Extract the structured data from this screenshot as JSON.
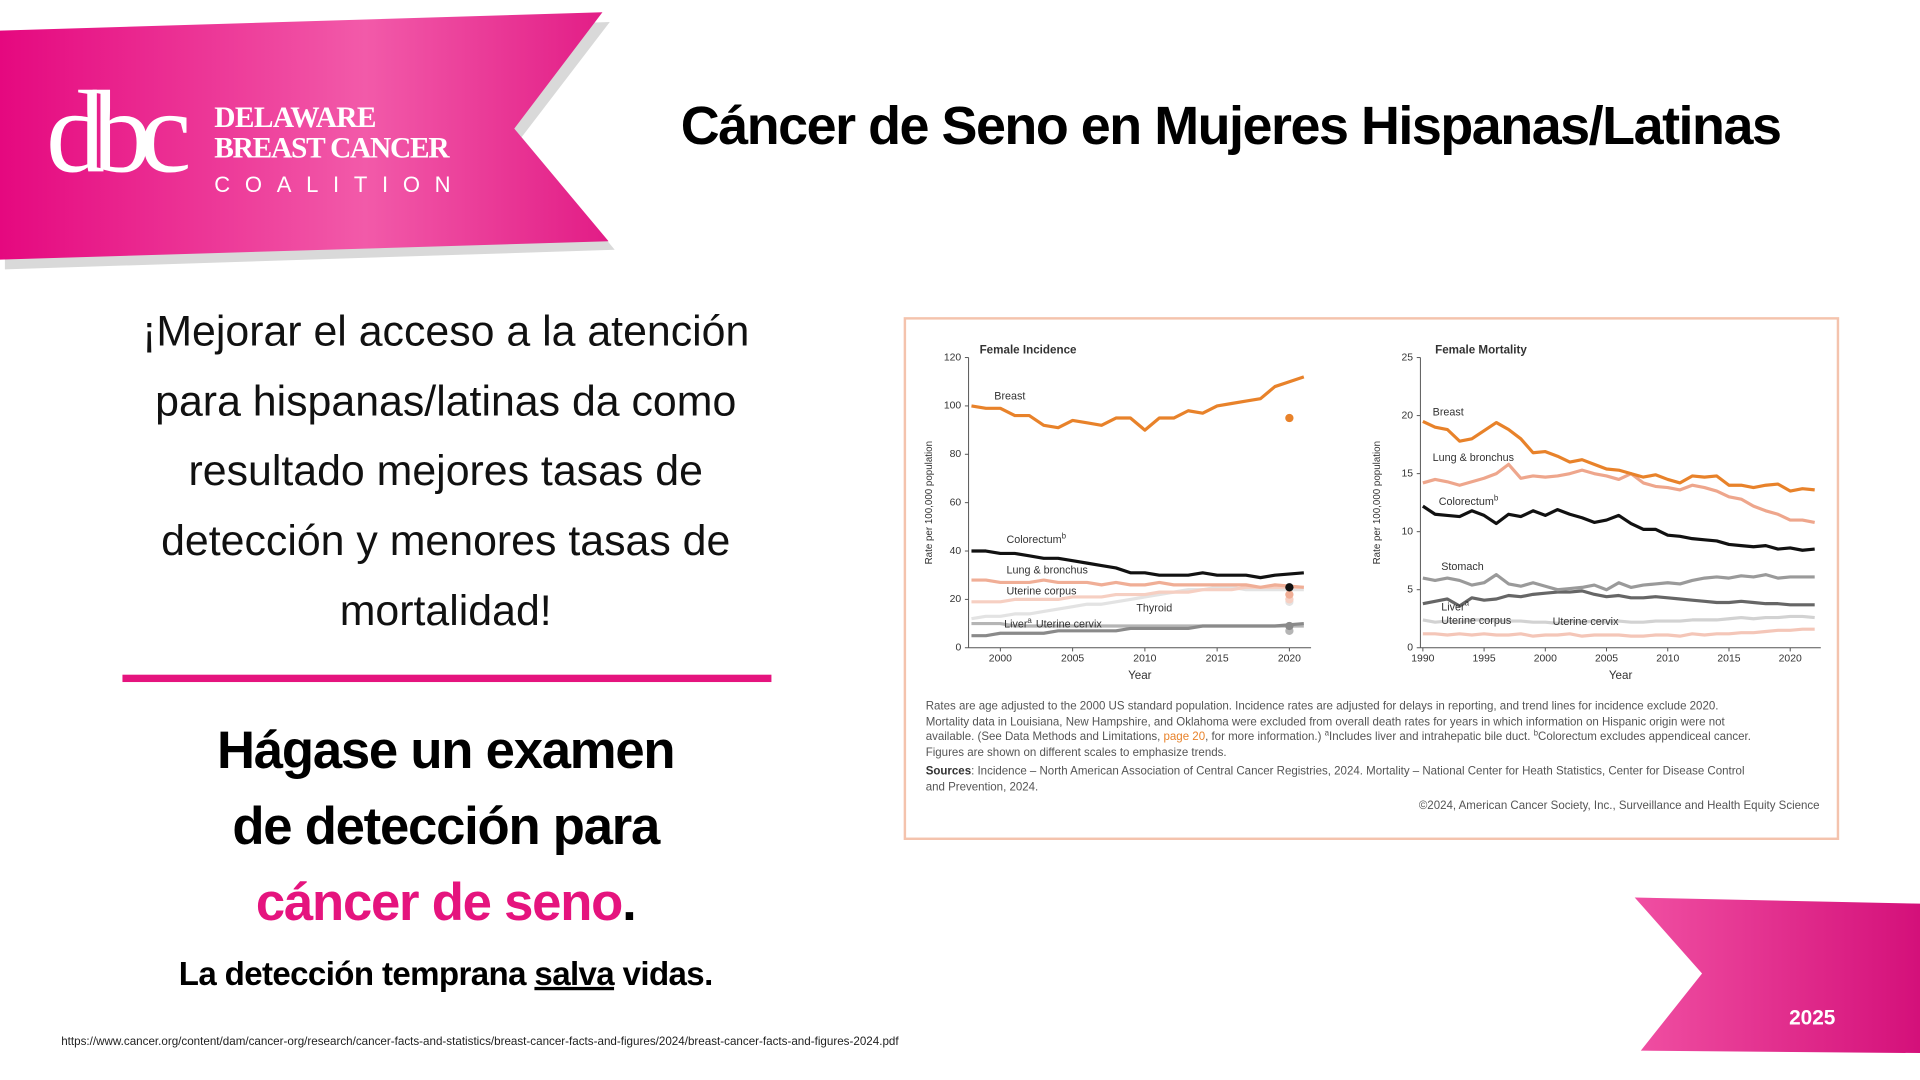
{
  "header": {
    "logo_mark": "dbc",
    "logo_lines": [
      "DELAWARE",
      "BREAST CANCER",
      "COALITION"
    ],
    "title": "Cáncer de Seno en Mujeres Hispanas/Latinas"
  },
  "intro": {
    "lines": [
      "¡Mejorar el acceso a la atención",
      "para hispanas/latinas da como",
      "resultado mejores tasas de",
      "detección y menores tasas de",
      "mortalidad!"
    ]
  },
  "cta": {
    "lines": [
      "Hágase un examen",
      "de detección para"
    ],
    "highlight": "cáncer de seno",
    "highlight_end": ".",
    "tagline": {
      "before": "La detección temprana ",
      "underlined": "salva",
      "after": " vidas."
    }
  },
  "source_url": "https://www.cancer.org/content/dam/cancer-org/research/cancer-facts-and-statistics/breast-cancer-facts-and-figures/2024/breast-cancer-facts-and-figures-2024.pdf",
  "year": "2025",
  "chart_data": [
    {
      "type": "line",
      "title": "Female Incidence",
      "x_label": "Year",
      "y_label": "Rate per 100,000 population",
      "x": [
        1998,
        1999,
        2000,
        2001,
        2002,
        2003,
        2004,
        2005,
        2006,
        2007,
        2008,
        2009,
        2010,
        2011,
        2012,
        2013,
        2014,
        2015,
        2016,
        2017,
        2018,
        2019,
        2021
      ],
      "xlim": [
        1997.8,
        2021.5
      ],
      "xticks": [
        2000,
        2005,
        2010,
        2015,
        2020
      ],
      "ylim": [
        0,
        120
      ],
      "yticks": [
        0,
        20,
        40,
        60,
        80,
        100,
        120
      ],
      "excluded_x": 2020,
      "series": [
        {
          "name": "Breast",
          "color": "#e8822a",
          "values": [
            100,
            99,
            99,
            96,
            96,
            92,
            91,
            94,
            93,
            92,
            95,
            95,
            90,
            95,
            95,
            98,
            97,
            100,
            101,
            102,
            103,
            108,
            112
          ],
          "excluded_value": 95
        },
        {
          "name": "Colorectum",
          "name_sup": "b",
          "color": "#111111",
          "values": [
            40,
            40,
            39,
            39,
            38,
            37,
            37,
            36,
            35,
            34,
            33,
            31,
            31,
            30,
            30,
            30,
            31,
            30,
            30,
            30,
            29,
            30,
            31
          ],
          "excluded_value": 25
        },
        {
          "name": "Lung & bronchus",
          "color": "#f0ae96",
          "values": [
            28,
            28,
            27,
            27,
            27,
            28,
            27,
            27,
            27,
            26,
            27,
            26,
            26,
            27,
            26,
            26,
            26,
            26,
            26,
            26,
            25,
            26,
            25
          ],
          "excluded_value": 22
        },
        {
          "name": "Uterine corpus",
          "color": "#f6cfc2",
          "values": [
            19,
            19,
            19,
            20,
            20,
            20,
            20,
            21,
            21,
            21,
            22,
            22,
            22,
            23,
            23,
            23,
            24,
            24,
            24,
            25,
            25,
            25,
            25
          ],
          "excluded_value": 20
        },
        {
          "name": "Thyroid",
          "color": "#e3e3e3",
          "values": [
            12,
            13,
            13,
            14,
            14,
            15,
            16,
            17,
            18,
            18,
            19,
            20,
            21,
            22,
            23,
            24,
            24,
            25,
            25,
            24,
            24,
            24,
            24
          ],
          "excluded_value": 19
        },
        {
          "name": "Liver",
          "name_sup": "a",
          "color": "#8a8a8a",
          "values": [
            5,
            5,
            6,
            6,
            6,
            6,
            7,
            7,
            7,
            7,
            7,
            8,
            8,
            8,
            8,
            8,
            9,
            9,
            9,
            9,
            9,
            9,
            10
          ],
          "excluded_value": 9
        },
        {
          "name": "Uterine cervix",
          "color": "#b5b5b5",
          "values": [
            10,
            10,
            10,
            9,
            9,
            9,
            9,
            9,
            9,
            9,
            9,
            9,
            9,
            9,
            9,
            9,
            9,
            9,
            9,
            9,
            9,
            9,
            9
          ],
          "excluded_value": 7
        }
      ]
    },
    {
      "type": "line",
      "title": "Female Mortality",
      "x_label": "Year",
      "y_label": "Rate per 100,000 population",
      "x": [
        1990,
        1991,
        1992,
        1993,
        1994,
        1995,
        1996,
        1997,
        1998,
        1999,
        2000,
        2001,
        2002,
        2003,
        2004,
        2005,
        2006,
        2007,
        2008,
        2009,
        2010,
        2011,
        2012,
        2013,
        2014,
        2015,
        2016,
        2017,
        2018,
        2019,
        2020,
        2021,
        2022
      ],
      "xlim": [
        1989.8,
        2022.5
      ],
      "xticks": [
        1990,
        1995,
        2000,
        2005,
        2010,
        2015,
        2020
      ],
      "ylim": [
        0,
        25
      ],
      "yticks": [
        0,
        5,
        10,
        15,
        20,
        25
      ],
      "series": [
        {
          "name": "Breast",
          "color": "#e8822a",
          "values": [
            19.5,
            19,
            18.8,
            17.8,
            18,
            18.7,
            19.4,
            18.8,
            18,
            16.8,
            16.9,
            16.5,
            16,
            16.2,
            15.8,
            15.4,
            15.3,
            15,
            14.7,
            14.9,
            14.5,
            14.2,
            14.8,
            14.7,
            14.8,
            14,
            14,
            13.8,
            14,
            14.1,
            13.5,
            13.7,
            13.6
          ]
        },
        {
          "name": "Lung & bronchus",
          "color": "#eea68c",
          "values": [
            14.2,
            14.5,
            14.3,
            14,
            14.3,
            14.6,
            15,
            15.8,
            14.6,
            14.8,
            14.7,
            14.8,
            15,
            15.3,
            15,
            14.8,
            14.5,
            15,
            14.2,
            13.9,
            13.8,
            13.6,
            14,
            13.8,
            13.5,
            13,
            12.8,
            12.2,
            11.8,
            11.5,
            11,
            11,
            10.8
          ]
        },
        {
          "name": "Colorectum",
          "name_sup": "b",
          "color": "#111111",
          "values": [
            12.2,
            11.5,
            11.4,
            11.3,
            11.8,
            11.4,
            10.7,
            11.5,
            11.3,
            11.8,
            11.4,
            11.9,
            11.5,
            11.2,
            10.8,
            11,
            11.4,
            10.7,
            10.2,
            10.2,
            9.7,
            9.6,
            9.4,
            9.3,
            9.2,
            8.9,
            8.8,
            8.7,
            8.8,
            8.5,
            8.6,
            8.4,
            8.5
          ]
        },
        {
          "name": "Stomach",
          "color": "#9a9a9a",
          "values": [
            6,
            5.8,
            6,
            5.8,
            5.4,
            5.6,
            6.3,
            5.5,
            5.3,
            5.6,
            5.3,
            5,
            5.1,
            5.2,
            5.4,
            5,
            5.6,
            5.2,
            5.4,
            5.5,
            5.6,
            5.5,
            5.8,
            6,
            6.1,
            6,
            6.2,
            6.1,
            6.3,
            6,
            6.1,
            6.1,
            6.1
          ]
        },
        {
          "name": "Liver",
          "name_sup": "a",
          "color": "#666666",
          "values": [
            3.8,
            4,
            4.2,
            3.6,
            4.3,
            4.1,
            4.2,
            4.5,
            4.4,
            4.6,
            4.7,
            4.8,
            4.8,
            4.9,
            4.6,
            4.4,
            4.5,
            4.3,
            4.3,
            4.4,
            4.3,
            4.2,
            4.1,
            4,
            3.9,
            3.9,
            4,
            3.9,
            3.8,
            3.8,
            3.7,
            3.7,
            3.7
          ]
        },
        {
          "name": "Uterine corpus",
          "color": "#d2d2d2",
          "values": [
            2.4,
            2.2,
            2.3,
            2.2,
            2.4,
            2.4,
            2.3,
            2.3,
            2.3,
            2.2,
            2.2,
            2.1,
            2.3,
            2.2,
            2.3,
            2.2,
            2.3,
            2.2,
            2.2,
            2.3,
            2.3,
            2.3,
            2.4,
            2.4,
            2.4,
            2.5,
            2.6,
            2.5,
            2.6,
            2.6,
            2.7,
            2.7,
            2.6
          ]
        },
        {
          "name": "Uterine cervix",
          "color": "#f4c6b8",
          "values": [
            1.2,
            1.2,
            1.1,
            1.2,
            1.1,
            1.2,
            1.1,
            1.1,
            1.2,
            1,
            1.1,
            1.1,
            1.2,
            1,
            1.1,
            1.1,
            1.1,
            1,
            1,
            1.1,
            1.1,
            1,
            1.2,
            1.1,
            1.2,
            1.2,
            1.3,
            1.3,
            1.4,
            1.5,
            1.5,
            1.6,
            1.6
          ]
        }
      ]
    }
  ],
  "chart_notes": {
    "line1": "Rates are age adjusted to the 2000 US standard population. Incidence rates are adjusted for delays in reporting, and trend lines for incidence exclude 2020.",
    "line2": "Mortality data in Louisiana, New Hampshire, and Oklahoma were excluded from overall death rates for years in which information on Hispanic origin were not",
    "line3": [
      "available. (See Data Methods and Limitations, ",
      "page 20",
      ", for more information.) ",
      "a",
      "Includes liver and intrahepatic bile duct. ",
      "b",
      "Colorectum excludes appendiceal cancer."
    ],
    "line4": "Figures are shown on different scales to emphasize trends.",
    "sources_label": "Sources",
    "sources_line1": ": Incidence – North American Association of Central Cancer Registries, 2024. Mortality – National Center for Heath Statistics, Center for Disease Control",
    "sources_line2": "and Prevention, 2024.",
    "copyright": "©2024, American Cancer Society, Inc., Surveillance and Health Equity Science"
  }
}
